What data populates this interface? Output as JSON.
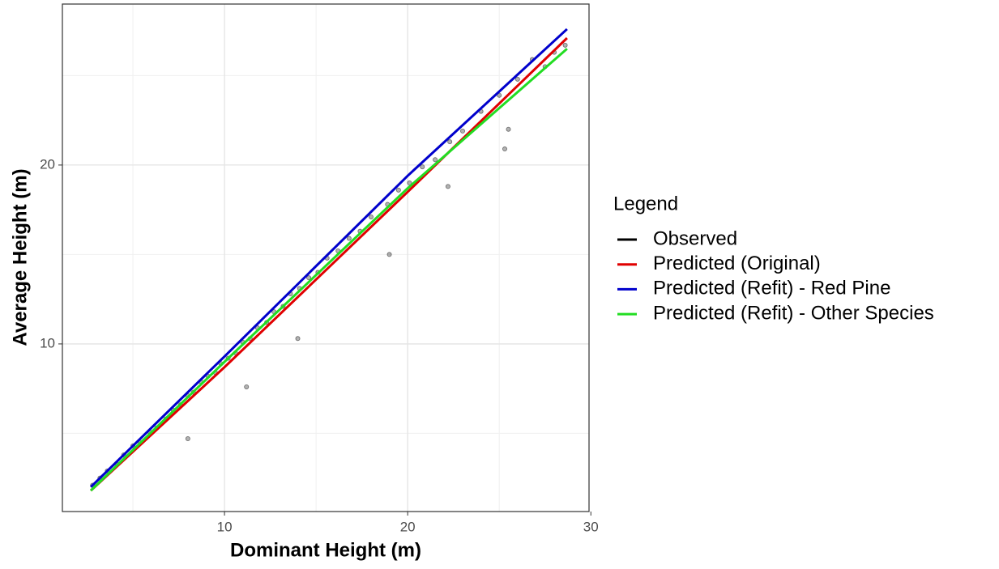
{
  "chart_data": {
    "type": "scatter",
    "xlabel": "Dominant Height (m)",
    "ylabel": "Average Height (m)",
    "legend_title": "Legend",
    "legend_position": "right",
    "grid": true,
    "xlim": [
      1.15,
      29.9
    ],
    "ylim": [
      0.63,
      29.0
    ],
    "xticks": [
      10,
      20,
      30
    ],
    "yticks": [
      10,
      20
    ],
    "x_minor_grid": [
      5,
      15,
      25
    ],
    "y_minor_grid": [
      5,
      15,
      25
    ],
    "series": [
      {
        "name": "Observed",
        "color": "#000000",
        "kind": "points",
        "x": [
          2.8,
          3.2,
          3.6,
          4.1,
          4.5,
          5.0,
          5.4,
          5.9,
          6.3,
          6.8,
          7.2,
          7.6,
          8.0,
          8.3,
          8.7,
          9.1,
          9.5,
          9.8,
          10.2,
          10.6,
          11.0,
          11.4,
          11.8,
          12.3,
          12.7,
          13.2,
          13.6,
          14.1,
          14.6,
          15.1,
          15.6,
          16.2,
          16.8,
          17.4,
          18.0,
          18.9,
          19.5,
          20.1,
          20.8,
          21.5,
          22.3,
          23.0,
          24.0,
          25.0,
          25.3,
          26.0,
          26.8,
          27.5,
          28.0,
          28.6,
          8.0,
          11.2,
          14.0,
          19.0,
          22.2,
          25.5
        ],
        "values": [
          2.1,
          2.5,
          2.9,
          3.3,
          3.8,
          4.3,
          4.5,
          5.1,
          5.3,
          5.8,
          6.3,
          6.6,
          7.1,
          7.3,
          7.9,
          8.2,
          8.4,
          8.9,
          9.2,
          9.5,
          10.1,
          10.3,
          10.9,
          11.2,
          11.8,
          12.1,
          12.8,
          13.1,
          13.7,
          14.0,
          14.8,
          15.2,
          15.9,
          16.3,
          17.1,
          17.8,
          18.6,
          19.0,
          19.9,
          20.3,
          21.3,
          21.9,
          23.0,
          23.9,
          20.9,
          24.8,
          25.9,
          25.5,
          26.3,
          26.7,
          4.7,
          7.6,
          10.3,
          15.0,
          18.8,
          22.0
        ]
      },
      {
        "name": "Predicted (Original)",
        "color": "#e00000",
        "kind": "line",
        "x": [
          2.7,
          10,
          20,
          28.7
        ],
        "values": [
          1.8,
          8.7,
          18.5,
          27.1
        ]
      },
      {
        "name": "Predicted (Refit) - Red Pine",
        "color": "#0000cc",
        "kind": "line",
        "x": [
          2.7,
          10,
          20,
          28.7
        ],
        "values": [
          2.0,
          9.3,
          19.4,
          27.6
        ]
      },
      {
        "name": "Predicted (Refit) - Other Species",
        "color": "#22dd22",
        "kind": "line",
        "x": [
          2.7,
          10,
          20,
          28.7
        ],
        "values": [
          1.8,
          9.0,
          18.7,
          26.5
        ]
      }
    ]
  }
}
